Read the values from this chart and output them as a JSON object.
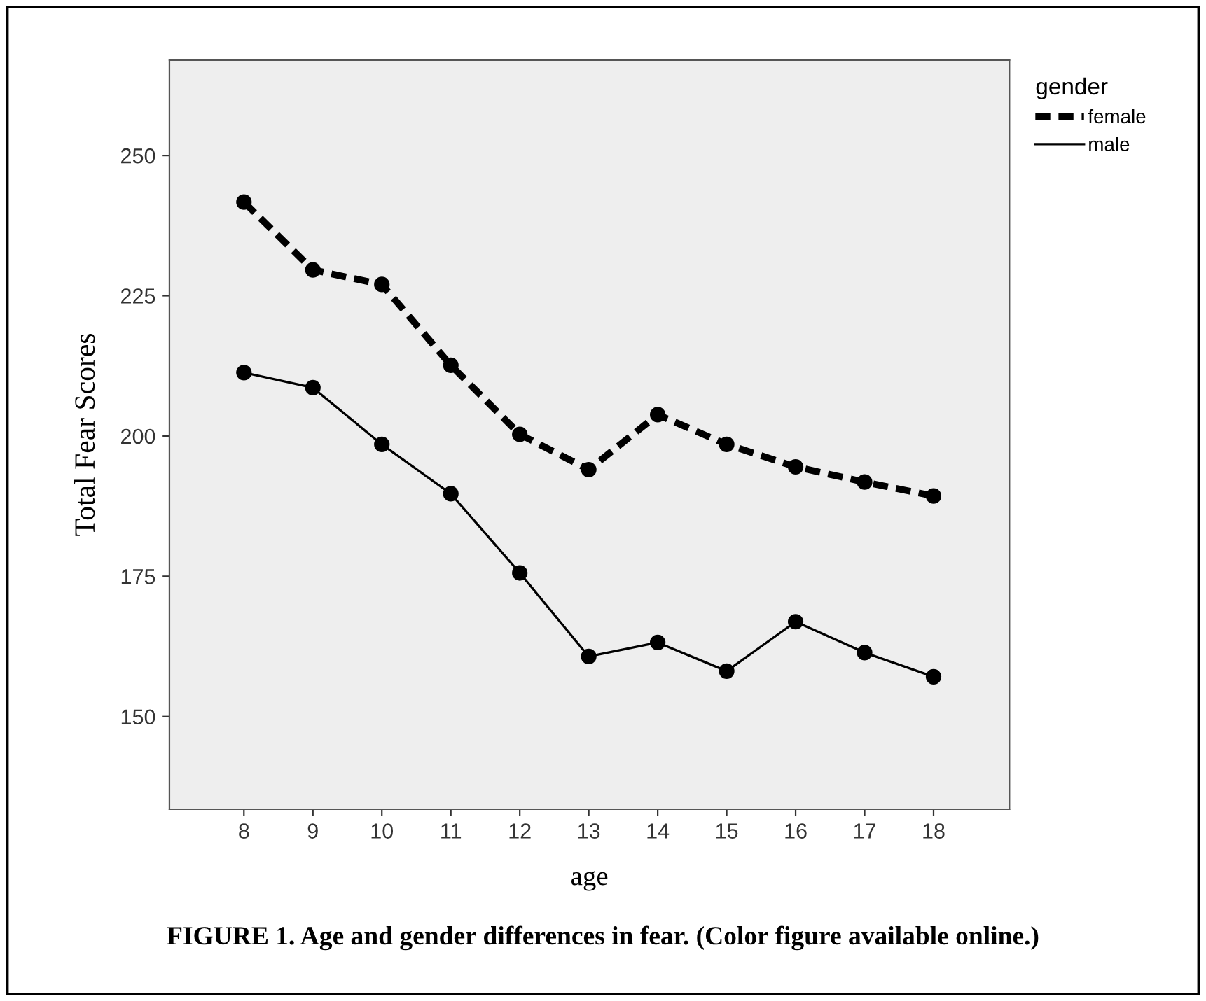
{
  "chart_data": {
    "type": "line",
    "xlabel": "age",
    "ylabel": "Total Fear Scores",
    "legend_title": "gender",
    "x": [
      8,
      9,
      10,
      11,
      12,
      13,
      14,
      15,
      16,
      17,
      18
    ],
    "series": [
      {
        "name": "female",
        "color": "#000000",
        "line_style": "dashed",
        "values": [
          241.7,
          229.6,
          227.0,
          212.6,
          200.3,
          194.0,
          203.8,
          198.5,
          194.5,
          191.8,
          189.3
        ]
      },
      {
        "name": "male",
        "color": "#000000",
        "line_style": "solid",
        "values": [
          211.3,
          208.6,
          198.5,
          189.7,
          175.6,
          160.7,
          163.2,
          158.1,
          166.9,
          161.4,
          157.1
        ]
      }
    ],
    "xlim": [
      6.92,
      19.1
    ],
    "xticks": [
      8,
      9,
      10,
      11,
      12,
      13,
      14,
      15,
      16,
      17,
      18
    ],
    "ylim": [
      133.5,
      267
    ],
    "yticks": [
      150,
      175,
      200,
      225,
      250
    ],
    "marker": "circle",
    "grid": false,
    "legend": "top right",
    "annotations": [
      "FIGURE 1. Age and gender differences in fear. (Color figure available online.)"
    ]
  }
}
